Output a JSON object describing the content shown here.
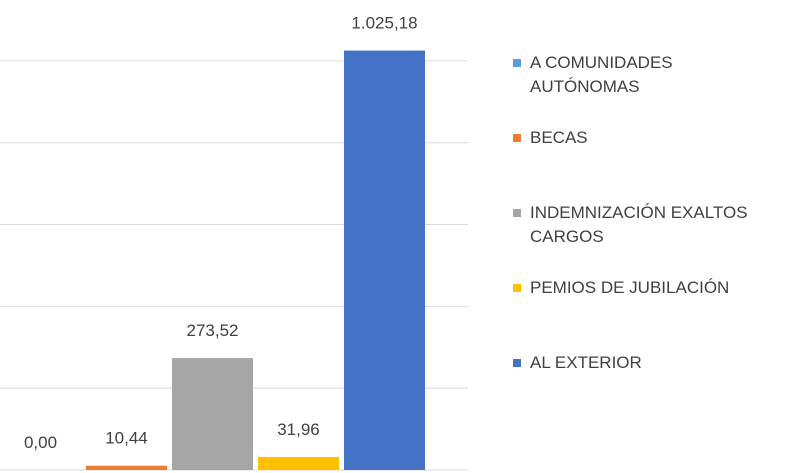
{
  "chart_data": {
    "type": "bar",
    "series": [
      {
        "name": "A COMUNIDADES AUTÓNOMAS",
        "color": "#5b9bd5",
        "values": [
          0
        ],
        "value_labels": [
          "0,00"
        ]
      },
      {
        "name": "BECAS",
        "color": "#ed7d31",
        "values": [
          10.44
        ],
        "value_labels": [
          "10,44"
        ]
      },
      {
        "name": "INDEMNIZACIÓN EXALTOS CARGOS",
        "color": "#a5a5a5",
        "values": [
          273.52
        ],
        "value_labels": [
          "273,52"
        ]
      },
      {
        "name": "PEMIOS DE JUBILACIÓN",
        "color": "#ffc000",
        "values": [
          31.96
        ],
        "value_labels": [
          "31,96"
        ]
      },
      {
        "name": "AL EXTERIOR",
        "color": "#4472c4",
        "values": [
          1025.18
        ],
        "value_labels": [
          "1.025,18"
        ]
      }
    ],
    "ylim": [
      0,
      1100
    ],
    "yticks": [
      0,
      200,
      400,
      600,
      800,
      1000
    ],
    "grid": true,
    "legend": "right"
  }
}
